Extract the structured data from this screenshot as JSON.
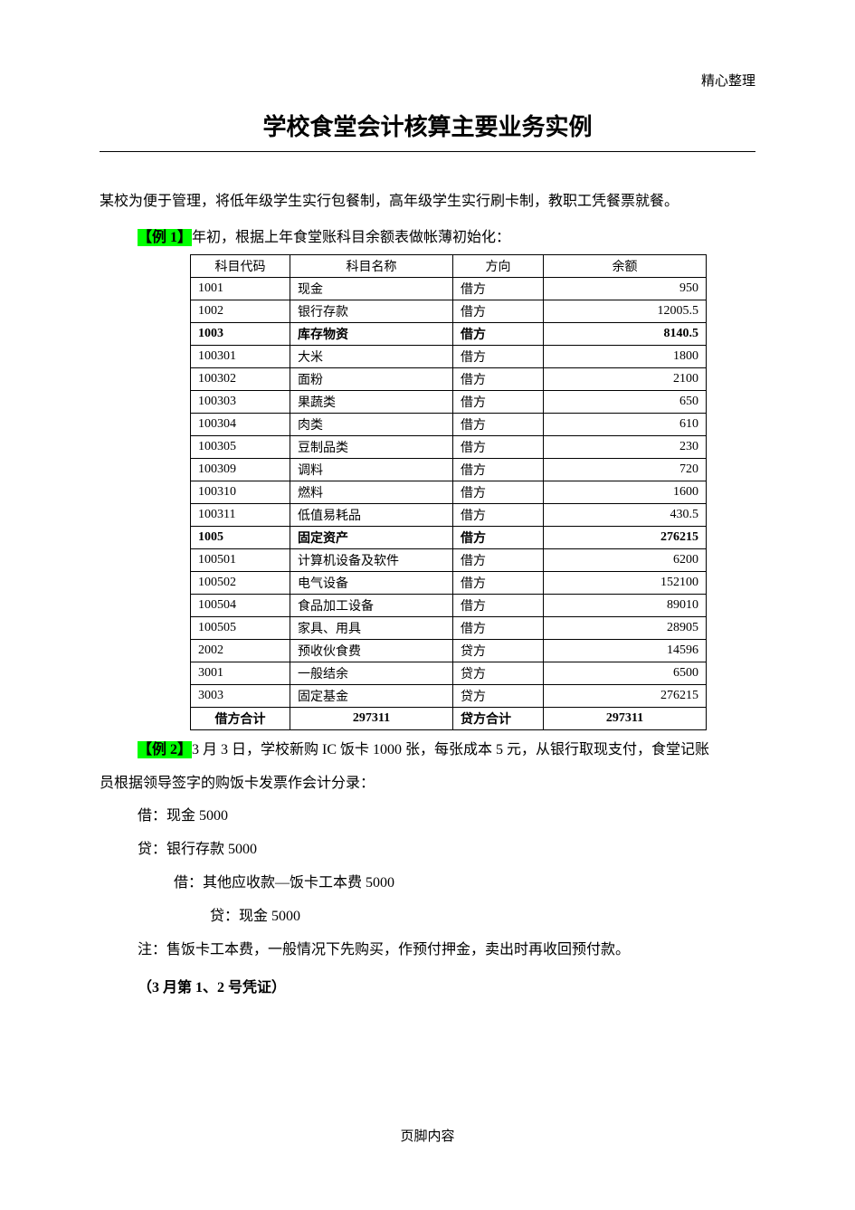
{
  "header_tag": "精心整理",
  "title": "学校食堂会计核算主要业务实例",
  "intro": "某校为便于管理，将低年级学生实行包餐制，高年级学生实行刷卡制，教职工凭餐票就餐。",
  "example1_tag": "【例 1】",
  "example1_text": "年初，根据上年食堂账科目余额表做帐薄初始化：",
  "table": {
    "headers": [
      "科目代码",
      "科目名称",
      "方向",
      "余额"
    ],
    "rows": [
      {
        "code": "1001",
        "name": "现金",
        "dir": "借方",
        "bal": "950",
        "bold": false
      },
      {
        "code": "1002",
        "name": "银行存款",
        "dir": "借方",
        "bal": "12005.5",
        "bold": false
      },
      {
        "code": "1003",
        "name": "库存物资",
        "dir": "借方",
        "bal": "8140.5",
        "bold": true
      },
      {
        "code": "100301",
        "name": "大米",
        "dir": "借方",
        "bal": "1800",
        "bold": false
      },
      {
        "code": "100302",
        "name": "面粉",
        "dir": "借方",
        "bal": "2100",
        "bold": false
      },
      {
        "code": "100303",
        "name": "果蔬类",
        "dir": "借方",
        "bal": "650",
        "bold": false
      },
      {
        "code": "100304",
        "name": "肉类",
        "dir": "借方",
        "bal": "610",
        "bold": false
      },
      {
        "code": "100305",
        "name": "豆制品类",
        "dir": "借方",
        "bal": "230",
        "bold": false
      },
      {
        "code": "100309",
        "name": "调料",
        "dir": "借方",
        "bal": "720",
        "bold": false
      },
      {
        "code": "100310",
        "name": "燃料",
        "dir": "借方",
        "bal": "1600",
        "bold": false
      },
      {
        "code": "100311",
        "name": "低值易耗品",
        "dir": "借方",
        "bal": "430.5",
        "bold": false
      },
      {
        "code": "1005",
        "name": "固定资产",
        "dir": "借方",
        "bal": "276215",
        "bold": true
      },
      {
        "code": "100501",
        "name": "计算机设备及软件",
        "dir": "借方",
        "bal": "6200",
        "bold": false
      },
      {
        "code": "100502",
        "name": "电气设备",
        "dir": "借方",
        "bal": "152100",
        "bold": false
      },
      {
        "code": "100504",
        "name": "食品加工设备",
        "dir": "借方",
        "bal": "89010",
        "bold": false
      },
      {
        "code": "100505",
        "name": "家具、用具",
        "dir": "借方",
        "bal": "28905",
        "bold": false
      },
      {
        "code": "2002",
        "name": "预收伙食费",
        "dir": "贷方",
        "bal": "14596",
        "bold": false
      },
      {
        "code": "3001",
        "name": "一般结余",
        "dir": "贷方",
        "bal": "6500",
        "bold": false
      },
      {
        "code": "3003",
        "name": "固定基金",
        "dir": "贷方",
        "bal": "276215",
        "bold": false
      }
    ],
    "totals": {
      "debit_label": "借方合计",
      "debit_val": "297311",
      "credit_label": "贷方合计",
      "credit_val": "297311"
    }
  },
  "example2_tag": "【例 2】",
  "example2_text_a": "3 月 3 日，学校新购 IC 饭卡 1000 张，每张成本 5 元，从银行取现支付，食堂记账",
  "example2_text_b": "员根据领导签字的购饭卡发票作会计分录：",
  "journal": {
    "l1": "借：现金 5000",
    "l2": "贷：银行存款 5000",
    "l3": "借：其他应收款—饭卡工本费 5000",
    "l4": "贷：现金 5000"
  },
  "note": "注：售饭卡工本费，一般情况下先购买，作预付押金，卖出时再收回预付款。",
  "voucher": "（3 月第 1、2 号凭证）",
  "footer": "页脚内容"
}
